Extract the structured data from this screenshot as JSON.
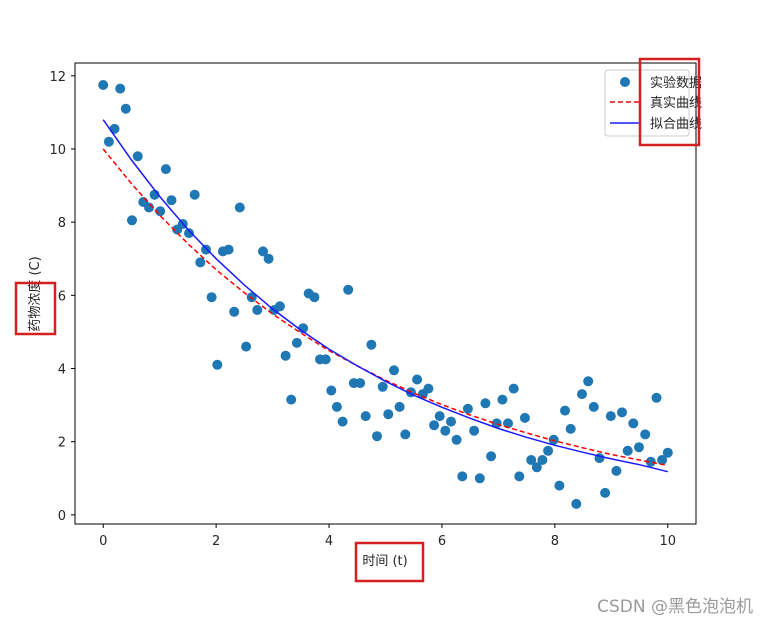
{
  "chart_data": {
    "type": "scatter",
    "title": "",
    "xlabel": "时间 (t)",
    "ylabel": "药物浓度 (C)",
    "xlim": [
      -0.5,
      10.5
    ],
    "ylim": [
      -0.25,
      12.35
    ],
    "xticks": [
      0,
      2,
      4,
      6,
      8,
      10
    ],
    "yticks": [
      0,
      2,
      4,
      6,
      8,
      10,
      12
    ],
    "grid": false,
    "legend_position": "top-right",
    "legend": [
      "实验数据",
      "真实曲线",
      "拟合曲线"
    ],
    "series": [
      {
        "name": "实验数据",
        "kind": "scatter",
        "color": "#1f77b4",
        "x": [
          0.0,
          0.1,
          0.2,
          0.3,
          0.4,
          0.51,
          0.61,
          0.71,
          0.81,
          0.91,
          1.01,
          1.11,
          1.21,
          1.31,
          1.41,
          1.52,
          1.62,
          1.72,
          1.82,
          1.92,
          2.02,
          2.12,
          2.22,
          2.32,
          2.42,
          2.53,
          2.63,
          2.73,
          2.83,
          2.93,
          3.03,
          3.13,
          3.23,
          3.33,
          3.43,
          3.54,
          3.64,
          3.74,
          3.84,
          3.94,
          4.04,
          4.14,
          4.24,
          4.34,
          4.44,
          4.55,
          4.65,
          4.75,
          4.85,
          4.95,
          5.05,
          5.15,
          5.25,
          5.35,
          5.45,
          5.56,
          5.66,
          5.76,
          5.86,
          5.96,
          6.06,
          6.16,
          6.26,
          6.36,
          6.46,
          6.57,
          6.67,
          6.77,
          6.87,
          6.97,
          7.07,
          7.17,
          7.27,
          7.37,
          7.47,
          7.58,
          7.68,
          7.78,
          7.88,
          7.98,
          8.08,
          8.18,
          8.28,
          8.38,
          8.48,
          8.59,
          8.69,
          8.79,
          8.89,
          8.99,
          9.09,
          9.19,
          9.29,
          9.39,
          9.49,
          9.6,
          9.7,
          9.8,
          9.9,
          10.0
        ],
        "y": [
          11.75,
          10.2,
          10.55,
          11.65,
          11.1,
          8.05,
          9.8,
          8.55,
          8.4,
          8.75,
          8.3,
          9.45,
          8.6,
          7.8,
          7.95,
          7.7,
          8.75,
          6.9,
          7.25,
          5.95,
          4.1,
          7.2,
          7.25,
          5.55,
          8.4,
          4.6,
          5.95,
          5.6,
          7.2,
          7.0,
          5.6,
          5.7,
          4.35,
          3.15,
          4.7,
          5.1,
          6.05,
          5.95,
          4.25,
          4.25,
          3.4,
          2.95,
          2.55,
          6.15,
          3.6,
          3.6,
          2.7,
          4.65,
          2.15,
          3.5,
          2.75,
          3.95,
          2.95,
          2.2,
          3.35,
          3.7,
          3.3,
          3.45,
          2.45,
          2.7,
          2.3,
          2.55,
          2.05,
          1.05,
          2.9,
          2.3,
          1.0,
          3.05,
          1.6,
          2.5,
          3.15,
          2.5,
          3.45,
          1.05,
          2.65,
          1.5,
          1.3,
          1.5,
          1.75,
          2.05,
          0.8,
          2.85,
          2.35,
          0.3,
          3.3,
          3.65,
          2.95,
          1.55,
          0.6,
          2.7,
          1.2,
          2.8,
          1.75,
          2.5,
          1.85,
          2.2,
          1.45,
          3.2,
          1.5,
          1.7
        ]
      },
      {
        "name": "真实曲线",
        "kind": "line",
        "style": "dashed",
        "color": "#ff0000",
        "x": [
          0,
          0.5,
          1,
          1.5,
          2,
          2.5,
          3,
          3.5,
          4,
          4.5,
          5,
          5.5,
          6,
          6.5,
          7,
          7.5,
          8,
          8.5,
          9,
          9.5,
          10
        ],
        "y": [
          10.0,
          9.05,
          8.19,
          7.41,
          6.7,
          6.07,
          5.49,
          4.97,
          4.49,
          4.07,
          3.68,
          3.33,
          3.01,
          2.73,
          2.47,
          2.24,
          2.02,
          1.83,
          1.65,
          1.5,
          1.35
        ]
      },
      {
        "name": "拟合曲线",
        "kind": "line",
        "style": "solid",
        "color": "#1a1aff",
        "x": [
          0,
          0.5,
          1,
          1.5,
          2,
          2.5,
          3,
          3.5,
          4,
          4.5,
          5,
          5.5,
          6,
          6.5,
          7,
          7.5,
          8,
          8.5,
          9,
          9.5,
          10
        ],
        "y": [
          10.8,
          9.7,
          8.7,
          7.8,
          7.0,
          6.28,
          5.63,
          5.05,
          4.53,
          4.07,
          3.65,
          3.27,
          2.94,
          2.64,
          2.36,
          2.12,
          1.9,
          1.71,
          1.53,
          1.37,
          1.18
        ]
      }
    ],
    "annotations": [
      {
        "type": "highlight-box",
        "color": "#d42020",
        "around": "legend labels"
      },
      {
        "type": "highlight-box",
        "color": "#d42020",
        "around": "y-axis label"
      },
      {
        "type": "highlight-box",
        "color": "#d42020",
        "around": "x-axis label"
      }
    ]
  },
  "watermark": "CSDN @黑色泡泡机"
}
